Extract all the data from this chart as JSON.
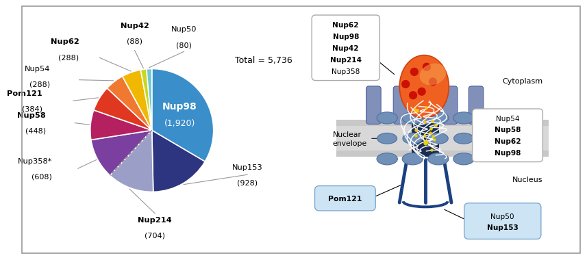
{
  "slices": [
    {
      "label": "Nup98",
      "value": 1920,
      "color": "#3a8ec9",
      "bold": true,
      "label_color": "white"
    },
    {
      "label": "Nup153",
      "value": 928,
      "color": "#2d3580",
      "bold": false,
      "label_color": "black"
    },
    {
      "label": "Nup214",
      "value": 704,
      "color": "#9b9fc8",
      "bold": true,
      "label_color": "black"
    },
    {
      "label": "Nup358*",
      "value": 608,
      "color": "#7b3fa0",
      "bold": false,
      "label_color": "black"
    },
    {
      "label": "Nup58",
      "value": 448,
      "color": "#b52060",
      "bold": true,
      "label_color": "black"
    },
    {
      "label": "Pom121",
      "value": 384,
      "color": "#e03820",
      "bold": true,
      "label_color": "black"
    },
    {
      "label": "Nup54",
      "value": 288,
      "color": "#f07830",
      "bold": false,
      "label_color": "black"
    },
    {
      "label": "Nup62",
      "value": 288,
      "color": "#f0b800",
      "bold": true,
      "label_color": "black"
    },
    {
      "label": "Nup42",
      "value": 88,
      "color": "#c8d820",
      "bold": true,
      "label_color": "black"
    },
    {
      "label": "Nup50",
      "value": 80,
      "color": "#70c8d0",
      "bold": false,
      "label_color": "black"
    }
  ],
  "total": 5736,
  "total_text": "Total = 5,736",
  "background_color": "#ffffff"
}
